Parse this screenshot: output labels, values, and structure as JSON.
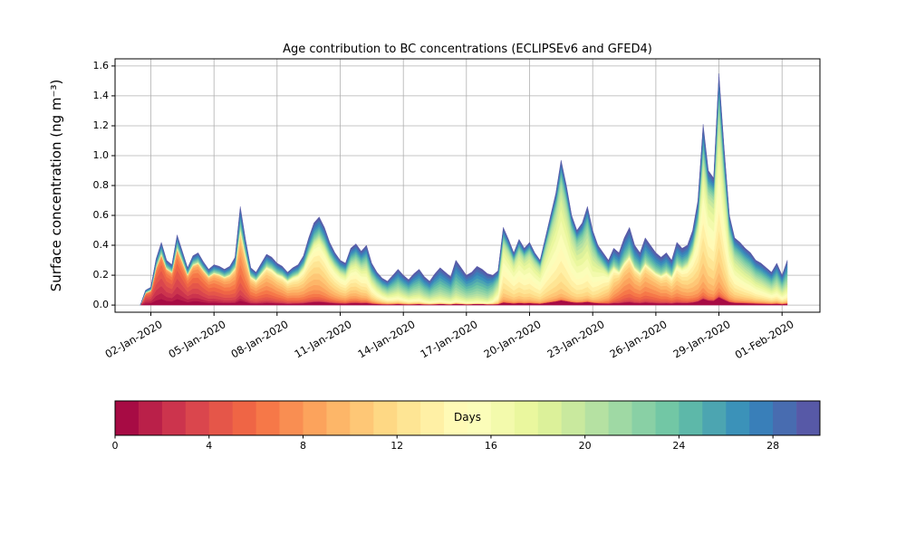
{
  "title": "Age contribution to BC concentrations (ECLIPSEv6 and GFED4)",
  "y_axis": {
    "label": "Surface concentration (ng m⁻³)",
    "ticks": [
      "0.0",
      "0.2",
      "0.4",
      "0.6",
      "0.8",
      "1.0",
      "1.2",
      "1.4",
      "1.6"
    ]
  },
  "x_axis": {
    "tick_labels": [
      "02-Jan-2020",
      "05-Jan-2020",
      "08-Jan-2020",
      "11-Jan-2020",
      "14-Jan-2020",
      "17-Jan-2020",
      "20-Jan-2020",
      "23-Jan-2020",
      "26-Jan-2020",
      "29-Jan-2020",
      "01-Feb-2020"
    ],
    "tick_days": [
      0,
      3,
      6,
      9,
      12,
      15,
      18,
      21,
      24,
      27,
      30
    ]
  },
  "colorbar": {
    "label": "Days",
    "tick_labels": [
      "0",
      "4",
      "8",
      "12",
      "16",
      "20",
      "24",
      "28"
    ],
    "tick_values": [
      0,
      4,
      8,
      12,
      16,
      20,
      24,
      28
    ],
    "vmin": 0,
    "vmax": 30,
    "n_segments": 30
  },
  "colors": {
    "spectral": [
      "#9e0142",
      "#d53e4f",
      "#f46d43",
      "#fdae61",
      "#fee08b",
      "#ffffbf",
      "#e6f598",
      "#abdda4",
      "#66c2a5",
      "#3288bd",
      "#5e4fa2"
    ],
    "grid": "#b0b0b0",
    "frame": "#000000",
    "background": "#ffffff"
  },
  "chart_data": {
    "type": "area",
    "stacked": true,
    "title": "Age contribution to BC concentrations (ECLIPSEv6 and GFED4)",
    "xlabel": "",
    "ylabel": "Surface concentration (ng m-3)",
    "x_start_day": -0.5,
    "x_step_days": 0.25,
    "x_units": "days since 02-Jan-2020 00:00",
    "total": [
      0.0,
      0.1,
      0.12,
      0.31,
      0.42,
      0.3,
      0.27,
      0.47,
      0.36,
      0.25,
      0.33,
      0.35,
      0.29,
      0.24,
      0.27,
      0.26,
      0.24,
      0.26,
      0.32,
      0.66,
      0.44,
      0.25,
      0.22,
      0.28,
      0.34,
      0.32,
      0.28,
      0.26,
      0.22,
      0.25,
      0.27,
      0.33,
      0.45,
      0.55,
      0.59,
      0.52,
      0.42,
      0.35,
      0.3,
      0.28,
      0.38,
      0.41,
      0.36,
      0.4,
      0.28,
      0.22,
      0.18,
      0.16,
      0.2,
      0.24,
      0.2,
      0.17,
      0.21,
      0.24,
      0.19,
      0.16,
      0.21,
      0.25,
      0.22,
      0.19,
      0.3,
      0.25,
      0.2,
      0.22,
      0.26,
      0.24,
      0.21,
      0.2,
      0.23,
      0.52,
      0.44,
      0.35,
      0.44,
      0.38,
      0.42,
      0.35,
      0.3,
      0.45,
      0.6,
      0.75,
      0.97,
      0.8,
      0.6,
      0.5,
      0.55,
      0.66,
      0.5,
      0.4,
      0.35,
      0.3,
      0.38,
      0.35,
      0.45,
      0.52,
      0.4,
      0.35,
      0.45,
      0.4,
      0.35,
      0.32,
      0.35,
      0.3,
      0.42,
      0.38,
      0.4,
      0.5,
      0.7,
      1.21,
      0.9,
      0.85,
      1.55,
      1.05,
      0.6,
      0.45,
      0.42,
      0.38,
      0.35,
      0.3,
      0.28,
      0.25,
      0.22,
      0.28,
      0.2,
      0.3
    ],
    "n_age_bins": 30,
    "age_profile_keyframes": [
      {
        "d": -0.5,
        "f": 0.8,
        "m": 2.5,
        "s": 2.5
      },
      {
        "d": 2,
        "f": 0.8,
        "m": 4,
        "s": 3
      },
      {
        "d": 4,
        "f": 0.75,
        "m": 6,
        "s": 3
      },
      {
        "d": 6,
        "f": 0.72,
        "m": 8,
        "s": 3.5
      },
      {
        "d": 8,
        "f": 0.75,
        "m": 11,
        "s": 4
      },
      {
        "d": 10,
        "f": 0.72,
        "m": 13,
        "s": 4.5
      },
      {
        "d": 11.5,
        "f": 0.55,
        "m": 17,
        "s": 5
      },
      {
        "d": 13.5,
        "f": 0.5,
        "m": 20,
        "s": 5
      },
      {
        "d": 16,
        "f": 0.45,
        "m": 22,
        "s": 5
      },
      {
        "d": 16.75,
        "f": 0.8,
        "m": 14,
        "s": 3.5
      },
      {
        "d": 18,
        "f": 0.82,
        "m": 14.5,
        "s": 3.5
      },
      {
        "d": 19.5,
        "f": 0.85,
        "m": 15,
        "s": 3.5
      },
      {
        "d": 21,
        "f": 0.78,
        "m": 16,
        "s": 4
      },
      {
        "d": 22.3,
        "f": 0.6,
        "m": 8,
        "s": 3
      },
      {
        "d": 24,
        "f": 0.58,
        "m": 8,
        "s": 3
      },
      {
        "d": 25.3,
        "f": 0.62,
        "m": 10,
        "s": 3.5
      },
      {
        "d": 26.2,
        "f": 0.8,
        "m": 13,
        "s": 4
      },
      {
        "d": 27,
        "f": 0.85,
        "m": 14,
        "s": 4
      },
      {
        "d": 28,
        "f": 0.72,
        "m": 15,
        "s": 4.5
      },
      {
        "d": 29.5,
        "f": 0.6,
        "m": 16,
        "s": 5
      },
      {
        "d": 30.25,
        "f": 0.58,
        "m": 17,
        "s": 5
      }
    ],
    "aged_background": {
      "center_age": 27,
      "sigma": 5
    },
    "age0_floor": 0.035,
    "xlim_days": [
      -1.7,
      31.8
    ],
    "ylim": [
      -0.048,
      1.648
    ]
  }
}
